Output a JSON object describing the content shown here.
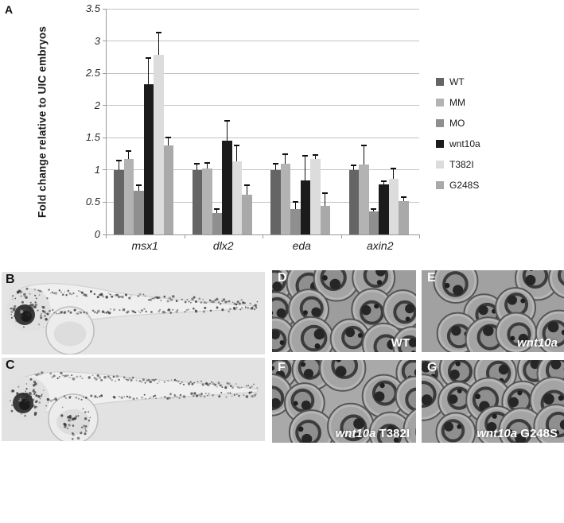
{
  "figure": {
    "panels": {
      "a": {
        "letter": "A"
      },
      "b": {
        "letter": "B"
      },
      "c": {
        "letter": "C"
      },
      "d": {
        "letter": "D",
        "caption": {
          "italic": "",
          "regular": "WT"
        }
      },
      "e": {
        "letter": "E",
        "caption": {
          "italic": "wnt10a",
          "regular": ""
        }
      },
      "f": {
        "letter": "F",
        "caption": {
          "italic": "wnt10a",
          "regular": " T382I"
        }
      },
      "g": {
        "letter": "G",
        "caption": {
          "italic": "wnt10a",
          "regular": " G248S"
        }
      }
    }
  },
  "chart_data": {
    "type": "bar",
    "title": "",
    "xlabel": "",
    "ylabel": "Fold change relative to UIC embryos",
    "categories": [
      "msx1",
      "dlx2",
      "eda",
      "axin2"
    ],
    "ylim": [
      0,
      3.5
    ],
    "ytick_labels": [
      "0",
      "0.5",
      "1",
      "1.5",
      "2",
      "2.5",
      "3",
      "3.5"
    ],
    "grid": true,
    "legend_position": "right",
    "error_bars": "upper",
    "series": [
      {
        "name": "WT",
        "color": "#656565",
        "values": [
          1.0,
          1.0,
          1.0,
          1.0
        ],
        "errors": [
          0.15,
          0.1,
          0.1,
          0.07
        ]
      },
      {
        "name": "MM",
        "color": "#b3b3b3",
        "values": [
          1.17,
          1.02,
          1.1,
          1.08
        ],
        "errors": [
          0.13,
          0.09,
          0.15,
          0.3
        ]
      },
      {
        "name": "MO",
        "color": "#8f8f8f",
        "values": [
          0.68,
          0.33,
          0.4,
          0.36
        ],
        "errors": [
          0.08,
          0.06,
          0.11,
          0.04
        ]
      },
      {
        "name": "wnt10a",
        "color": "#1b1b1b",
        "values": [
          2.33,
          1.46,
          0.84,
          0.78
        ],
        "errors": [
          0.4,
          0.3,
          0.38,
          0.05
        ]
      },
      {
        "name": "T382I",
        "color": "#dcdcdc",
        "values": [
          2.78,
          1.13,
          1.17,
          0.86
        ],
        "errors": [
          0.35,
          0.25,
          0.06,
          0.16
        ]
      },
      {
        "name": "G248S",
        "color": "#a9a9a9",
        "values": [
          1.38,
          0.62,
          0.44,
          0.52
        ],
        "errors": [
          0.12,
          0.15,
          0.2,
          0.06
        ]
      }
    ]
  }
}
